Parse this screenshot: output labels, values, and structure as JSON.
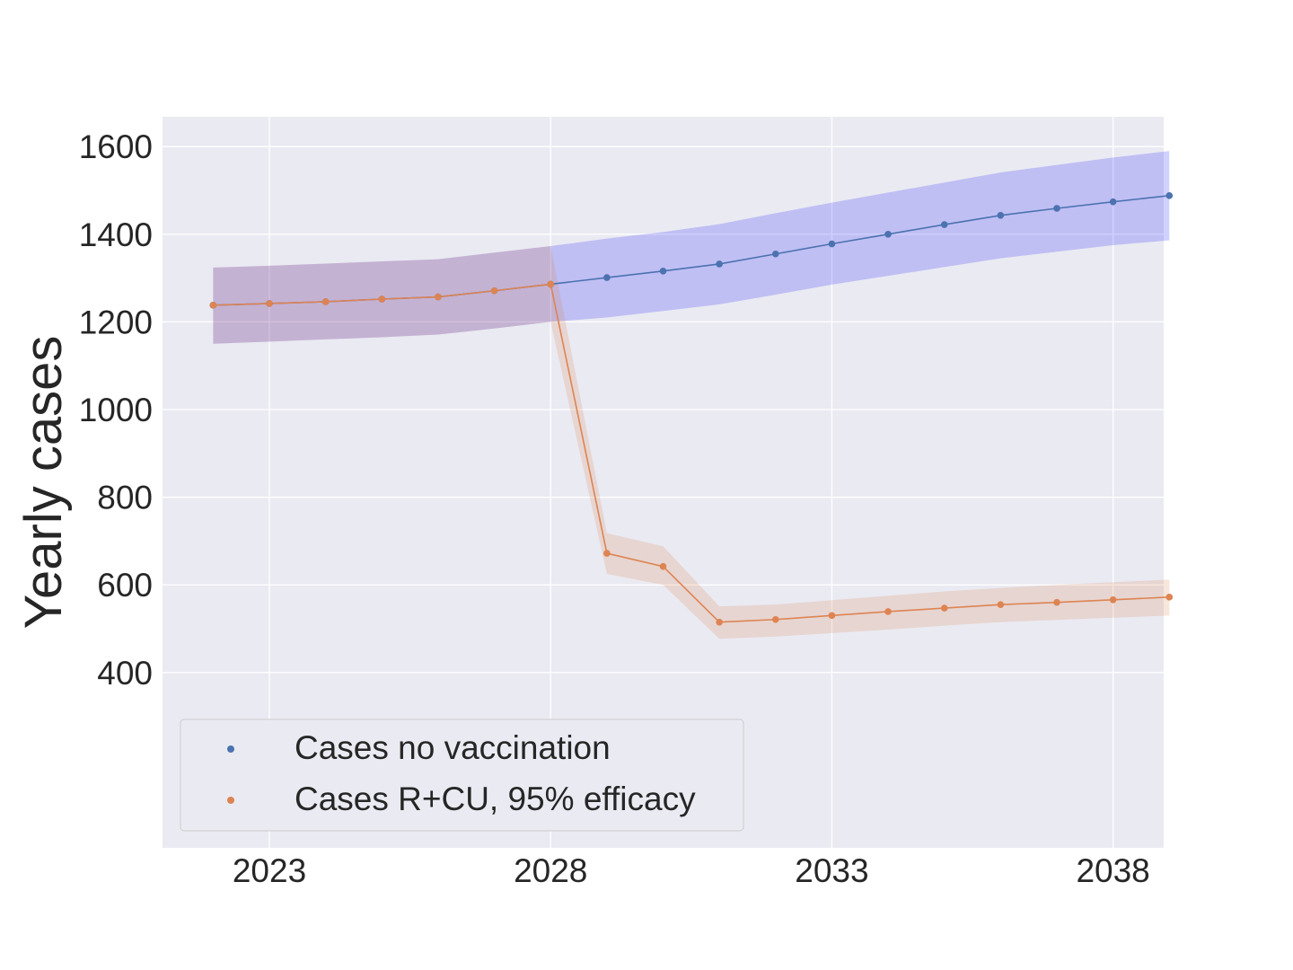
{
  "chart_data": {
    "type": "line",
    "title": "",
    "xlabel": "",
    "ylabel": "Yearly cases",
    "xlim": [
      2021.1,
      2038.9
    ],
    "ylim": [
      0,
      1668
    ],
    "x_ticks": [
      2023,
      2028,
      2033,
      2038
    ],
    "y_ticks": [
      400,
      600,
      800,
      1000,
      1200,
      1400,
      1600
    ],
    "grid": true,
    "legend_position": "lower-left",
    "x": [
      2022,
      2023,
      2024,
      2025,
      2026,
      2027,
      2028,
      2029,
      2030,
      2031,
      2032,
      2033,
      2034,
      2035,
      2036,
      2037,
      2038,
      2039
    ],
    "series": [
      {
        "name": "Cases no vaccination",
        "color": "#4c72b0",
        "band_color": "#0000ff",
        "values": [
          1238,
          1242,
          1246,
          1252,
          1257,
          1271,
          1286,
          1301,
          1316,
          1332,
          1355,
          1378,
          1400,
          1422,
          1443,
          1459,
          1474,
          1488
        ],
        "lower": [
          1150,
          1155,
          1160,
          1165,
          1171,
          1185,
          1200,
          1210,
          1225,
          1240,
          1262,
          1285,
          1305,
          1325,
          1345,
          1360,
          1375,
          1386
        ],
        "upper": [
          1324,
          1328,
          1333,
          1338,
          1343,
          1358,
          1373,
          1390,
          1405,
          1423,
          1448,
          1472,
          1495,
          1518,
          1541,
          1558,
          1575,
          1590
        ]
      },
      {
        "name": "Cases R+CU, 95% efficacy",
        "color": "#dd8452",
        "band_color": "#dd8452",
        "values": [
          1238,
          1242,
          1246,
          1252,
          1257,
          1271,
          1286,
          672,
          642,
          515,
          521,
          530,
          539,
          547,
          555,
          560,
          566,
          572
        ],
        "lower": [
          1150,
          1155,
          1160,
          1165,
          1171,
          1185,
          1200,
          625,
          600,
          477,
          482,
          490,
          498,
          507,
          515,
          520,
          525,
          530
        ],
        "upper": [
          1324,
          1328,
          1333,
          1338,
          1343,
          1358,
          1373,
          718,
          688,
          551,
          555,
          565,
          575,
          585,
          593,
          600,
          606,
          612
        ]
      }
    ]
  }
}
